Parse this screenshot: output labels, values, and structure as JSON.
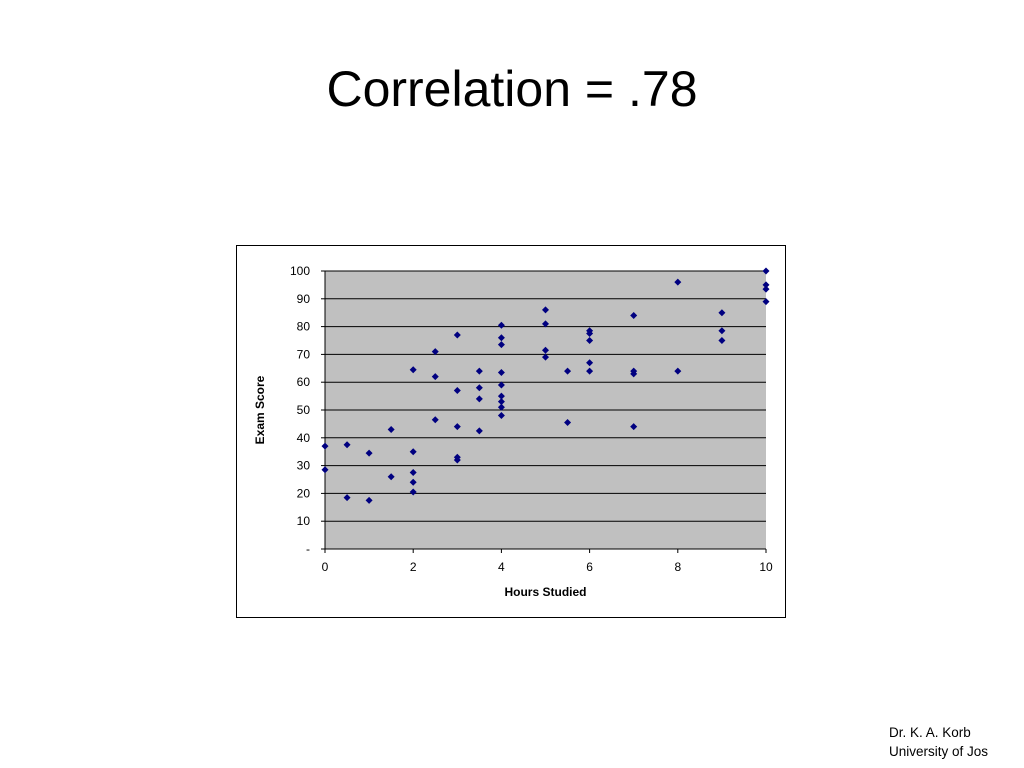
{
  "slide": {
    "title": "Correlation = .78",
    "credit_line1": "Dr. K. A. Korb",
    "credit_line2": "University of Jos"
  },
  "chart_data": {
    "type": "scatter",
    "title": "",
    "xlabel": "Hours Studied",
    "ylabel": "Exam Score",
    "xlim": [
      0,
      10
    ],
    "ylim": [
      0,
      100
    ],
    "xticks": [
      0,
      2,
      4,
      6,
      8,
      10
    ],
    "xtick_labels": [
      "0",
      "2",
      "4",
      "6",
      "8",
      "10"
    ],
    "yticks": [
      0,
      10,
      20,
      30,
      40,
      50,
      60,
      70,
      80,
      90,
      100
    ],
    "ytick_labels": [
      "-",
      "10",
      "20",
      "30",
      "40",
      "50",
      "60",
      "70",
      "80",
      "90",
      "100"
    ],
    "grid": "horizontal",
    "legend": "none",
    "plot_background": "#c0c0c0",
    "marker_color": "#000080",
    "points": [
      {
        "x": 0,
        "y": 37
      },
      {
        "x": 0,
        "y": 28.5
      },
      {
        "x": 0.5,
        "y": 37.5
      },
      {
        "x": 0.5,
        "y": 18.5
      },
      {
        "x": 1,
        "y": 34.5
      },
      {
        "x": 1,
        "y": 17.5
      },
      {
        "x": 1.5,
        "y": 43
      },
      {
        "x": 1.5,
        "y": 26
      },
      {
        "x": 2,
        "y": 64.5
      },
      {
        "x": 2,
        "y": 35
      },
      {
        "x": 2,
        "y": 27.5
      },
      {
        "x": 2,
        "y": 24
      },
      {
        "x": 2,
        "y": 20.5
      },
      {
        "x": 2.5,
        "y": 71
      },
      {
        "x": 2.5,
        "y": 62
      },
      {
        "x": 2.5,
        "y": 46.5
      },
      {
        "x": 3,
        "y": 77
      },
      {
        "x": 3,
        "y": 57
      },
      {
        "x": 3,
        "y": 44
      },
      {
        "x": 3,
        "y": 33
      },
      {
        "x": 3,
        "y": 32
      },
      {
        "x": 3.5,
        "y": 64
      },
      {
        "x": 3.5,
        "y": 58
      },
      {
        "x": 3.5,
        "y": 54
      },
      {
        "x": 3.5,
        "y": 42.5
      },
      {
        "x": 4,
        "y": 80.5
      },
      {
        "x": 4,
        "y": 76
      },
      {
        "x": 4,
        "y": 73.5
      },
      {
        "x": 4,
        "y": 63.5
      },
      {
        "x": 4,
        "y": 59
      },
      {
        "x": 4,
        "y": 55
      },
      {
        "x": 4,
        "y": 53
      },
      {
        "x": 4,
        "y": 51
      },
      {
        "x": 4,
        "y": 48
      },
      {
        "x": 5,
        "y": 86
      },
      {
        "x": 5,
        "y": 81
      },
      {
        "x": 5,
        "y": 71.5
      },
      {
        "x": 5,
        "y": 69
      },
      {
        "x": 5.5,
        "y": 64
      },
      {
        "x": 5.5,
        "y": 45.5
      },
      {
        "x": 6,
        "y": 78.5
      },
      {
        "x": 6,
        "y": 77.5
      },
      {
        "x": 6,
        "y": 75
      },
      {
        "x": 6,
        "y": 67
      },
      {
        "x": 6,
        "y": 64
      },
      {
        "x": 7,
        "y": 84
      },
      {
        "x": 7,
        "y": 64
      },
      {
        "x": 7,
        "y": 63
      },
      {
        "x": 7,
        "y": 44
      },
      {
        "x": 8,
        "y": 96
      },
      {
        "x": 8,
        "y": 64
      },
      {
        "x": 9,
        "y": 85
      },
      {
        "x": 9,
        "y": 78.5
      },
      {
        "x": 9,
        "y": 75
      },
      {
        "x": 10,
        "y": 100
      },
      {
        "x": 10,
        "y": 95
      },
      {
        "x": 10,
        "y": 93.5
      },
      {
        "x": 10,
        "y": 89
      }
    ]
  }
}
